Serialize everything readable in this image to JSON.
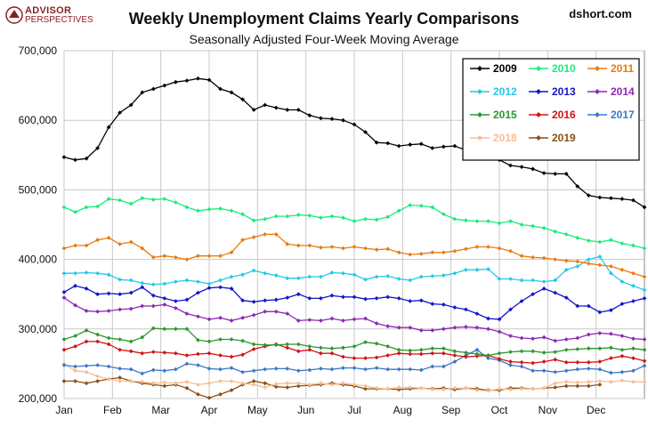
{
  "header": {
    "logo_line1": "ADVISOR",
    "logo_line2": "PERSPECTIVES",
    "source": "dshort.com"
  },
  "colors": {
    "logo": "#8a1e1e",
    "grid": "#c8c8c8"
  },
  "chart_data": {
    "type": "line",
    "title": "Weekly Unemployment Claims Yearly Comparisons",
    "subtitle": "Seasonally Adjusted Four-Week Moving Average",
    "xlabel": "",
    "ylabel": "",
    "ylim": [
      200000,
      700000
    ],
    "yticks": [
      200000,
      300000,
      400000,
      500000,
      600000,
      700000
    ],
    "ytick_labels": [
      "200,000",
      "300,000",
      "400,000",
      "500,000",
      "600,000",
      "700,000"
    ],
    "xlim": [
      0,
      52
    ],
    "x_tick_labels": [
      "Jan",
      "Feb",
      "Mar",
      "Apr",
      "May",
      "Jun",
      "Jul",
      "Aug",
      "Sep",
      "Oct",
      "Nov",
      "Dec"
    ],
    "grid": true,
    "legend_position": "top-right",
    "series": [
      {
        "name": "2009",
        "color": "#000000",
        "marker": "diamond",
        "values": [
          547000,
          543000,
          545000,
          560000,
          590000,
          611000,
          622000,
          640000,
          645000,
          650000,
          655000,
          657000,
          660000,
          658000,
          645000,
          640000,
          630000,
          615000,
          622000,
          618000,
          615000,
          615000,
          607000,
          603000,
          602000,
          600000,
          594000,
          583000,
          568000,
          567000,
          563000,
          565000,
          566000,
          560000,
          562000,
          563000,
          557000,
          553000,
          550000,
          543000,
          535000,
          533000,
          530000,
          524000,
          523000,
          523000,
          505000,
          492000,
          489000,
          488000,
          487000,
          485000,
          475000
        ]
      },
      {
        "name": "2010",
        "color": "#1aeb7a",
        "marker": "diamond",
        "values": [
          475000,
          468000,
          475000,
          476000,
          487000,
          485000,
          480000,
          488000,
          486000,
          487000,
          482000,
          475000,
          470000,
          472000,
          473000,
          470000,
          465000,
          456000,
          458000,
          462000,
          462000,
          464000,
          463000,
          460000,
          462000,
          460000,
          455000,
          458000,
          457000,
          461000,
          470000,
          478000,
          477000,
          475000,
          465000,
          458000,
          456000,
          455000,
          455000,
          452000,
          455000,
          450000,
          448000,
          445000,
          440000,
          436000,
          431000,
          427000,
          425000,
          428000,
          423000,
          420000,
          416000
        ]
      },
      {
        "name": "2011",
        "color": "#e87b10",
        "marker": "diamond",
        "values": [
          416000,
          420000,
          420000,
          428000,
          431000,
          422000,
          425000,
          416000,
          403000,
          405000,
          403000,
          400000,
          405000,
          405000,
          405000,
          410000,
          428000,
          432000,
          436000,
          436000,
          422000,
          420000,
          420000,
          417000,
          418000,
          416000,
          418000,
          416000,
          414000,
          415000,
          410000,
          407000,
          408000,
          410000,
          410000,
          412000,
          415000,
          418000,
          418000,
          416000,
          412000,
          405000,
          403000,
          402000,
          400000,
          398000,
          397000,
          394000,
          392000,
          390000,
          385000,
          380000,
          375000
        ]
      },
      {
        "name": "2012",
        "color": "#24c8e8",
        "marker": "diamond",
        "values": [
          380000,
          380000,
          381000,
          380000,
          378000,
          371000,
          370000,
          366000,
          364000,
          365000,
          368000,
          370000,
          368000,
          365000,
          370000,
          375000,
          378000,
          384000,
          380000,
          377000,
          373000,
          373000,
          375000,
          375000,
          381000,
          380000,
          378000,
          371000,
          375000,
          376000,
          372000,
          370000,
          375000,
          376000,
          377000,
          380000,
          385000,
          385000,
          386000,
          372000,
          372000,
          370000,
          370000,
          368000,
          370000,
          385000,
          390000,
          400000,
          404000,
          380000,
          368000,
          362000,
          356000
        ]
      },
      {
        "name": "2013",
        "color": "#1414c8",
        "marker": "diamond",
        "values": [
          353000,
          362000,
          358000,
          350000,
          351000,
          350000,
          352000,
          360000,
          348000,
          344000,
          340000,
          342000,
          352000,
          359000,
          360000,
          358000,
          341000,
          339000,
          341000,
          342000,
          345000,
          350000,
          344000,
          344000,
          348000,
          346000,
          346000,
          343000,
          344000,
          346000,
          344000,
          340000,
          341000,
          336000,
          335000,
          331000,
          328000,
          322000,
          315000,
          314000,
          328000,
          340000,
          350000,
          358000,
          352000,
          345000,
          333000,
          333000,
          324000,
          327000,
          336000,
          340000,
          344000
        ]
      },
      {
        "name": "2014",
        "color": "#8c28b4",
        "marker": "diamond",
        "values": [
          345000,
          334000,
          326000,
          325000,
          326000,
          328000,
          329000,
          333000,
          333000,
          335000,
          330000,
          322000,
          318000,
          314000,
          316000,
          312000,
          316000,
          320000,
          325000,
          325000,
          322000,
          312000,
          313000,
          312000,
          315000,
          312000,
          314000,
          315000,
          308000,
          304000,
          302000,
          302000,
          298000,
          298000,
          300000,
          302000,
          303000,
          302000,
          300000,
          296000,
          290000,
          287000,
          286000,
          288000,
          283000,
          285000,
          287000,
          292000,
          294000,
          293000,
          290000,
          286000,
          285000
        ]
      },
      {
        "name": "2015",
        "color": "#2e9630",
        "marker": "diamond",
        "values": [
          285000,
          290000,
          298000,
          292000,
          287000,
          285000,
          282000,
          288000,
          301000,
          300000,
          300000,
          300000,
          284000,
          282000,
          285000,
          285000,
          283000,
          278000,
          277000,
          277000,
          278000,
          278000,
          275000,
          273000,
          272000,
          273000,
          275000,
          281000,
          279000,
          275000,
          270000,
          269000,
          270000,
          272000,
          272000,
          268000,
          266000,
          264000,
          262000,
          265000,
          267000,
          268000,
          268000,
          266000,
          267000,
          270000,
          271000,
          272000,
          272000,
          273000,
          270000,
          272000,
          270000
        ]
      },
      {
        "name": "2016",
        "color": "#d01414",
        "marker": "diamond",
        "values": [
          270000,
          275000,
          282000,
          282000,
          278000,
          270000,
          268000,
          265000,
          267000,
          266000,
          265000,
          262000,
          264000,
          265000,
          262000,
          260000,
          263000,
          271000,
          275000,
          278000,
          273000,
          268000,
          270000,
          265000,
          265000,
          260000,
          258000,
          258000,
          259000,
          262000,
          265000,
          264000,
          264000,
          265000,
          265000,
          262000,
          260000,
          261000,
          262000,
          257000,
          253000,
          252000,
          251000,
          253000,
          256000,
          252000,
          252000,
          252000,
          253000,
          258000,
          261000,
          258000,
          254000
        ]
      },
      {
        "name": "2017",
        "color": "#3c78c8",
        "marker": "diamond",
        "values": [
          248000,
          246000,
          247000,
          248000,
          246000,
          243000,
          242000,
          236000,
          241000,
          240000,
          242000,
          250000,
          248000,
          243000,
          242000,
          244000,
          238000,
          240000,
          242000,
          243000,
          243000,
          240000,
          241000,
          243000,
          242000,
          244000,
          244000,
          242000,
          244000,
          242000,
          242000,
          242000,
          241000,
          246000,
          246000,
          253000,
          262000,
          270000,
          258000,
          255000,
          248000,
          246000,
          240000,
          240000,
          238000,
          240000,
          242000,
          243000,
          242000,
          237000,
          238000,
          240000,
          247000
        ]
      },
      {
        "name": "2018",
        "color": "#f5be96",
        "marker": "diamond",
        "values": [
          250000,
          240000,
          238000,
          232000,
          228000,
          225000,
          225000,
          224000,
          222000,
          223000,
          222000,
          224000,
          220000,
          222000,
          225000,
          225000,
          222000,
          220000,
          216000,
          221000,
          222000,
          222000,
          220000,
          222000,
          220000,
          222000,
          220000,
          218000,
          215000,
          214000,
          216000,
          216000,
          215000,
          213000,
          213000,
          215000,
          215000,
          212000,
          211000,
          214000,
          213000,
          214000,
          214000,
          215000,
          222000,
          224000,
          223000,
          224000,
          225000,
          224000,
          226000,
          224000,
          224000
        ]
      },
      {
        "name": "2019",
        "color": "#8c5014",
        "marker": "diamond",
        "values": [
          225000,
          225000,
          222000,
          225000,
          228000,
          230000,
          225000,
          222000,
          220000,
          218000,
          220000,
          215000,
          206000,
          201000,
          206000,
          212000,
          220000,
          225000,
          222000,
          217000,
          216000,
          218000,
          219000,
          220000,
          222000,
          220000,
          218000,
          214000,
          214000,
          214000,
          213000,
          214000,
          215000,
          214000,
          215000,
          213000,
          215000,
          214000,
          212000,
          212000,
          215000,
          215000,
          214000,
          215000,
          216000,
          218000,
          218000,
          218000,
          220000
        ]
      }
    ]
  }
}
